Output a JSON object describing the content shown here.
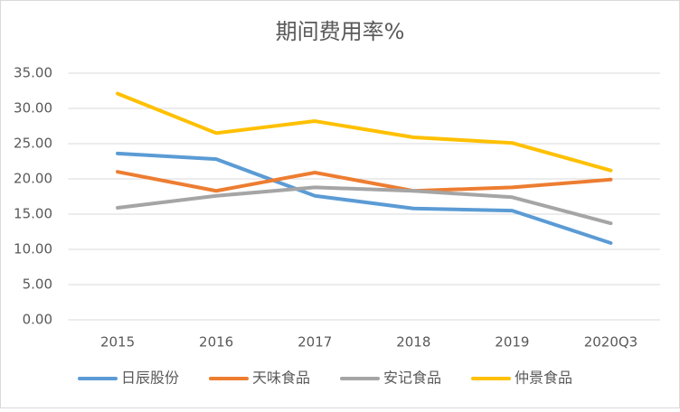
{
  "chart_data": {
    "type": "line",
    "title": "期间费用率%",
    "categories": [
      "2015",
      "2016",
      "2017",
      "2018",
      "2019",
      "2020Q3"
    ],
    "series": [
      {
        "name": "日辰股份",
        "color": "#5b9bd5",
        "values": [
          23.6,
          22.8,
          17.6,
          15.8,
          15.5,
          10.9
        ]
      },
      {
        "name": "天味食品",
        "color": "#ed7d31",
        "values": [
          21.0,
          18.3,
          20.9,
          18.3,
          18.8,
          19.9
        ]
      },
      {
        "name": "安记食品",
        "color": "#a5a5a5",
        "values": [
          15.9,
          17.6,
          18.8,
          18.3,
          17.4,
          13.7
        ]
      },
      {
        "name": "仲景食品",
        "color": "#ffc000",
        "values": [
          32.1,
          26.5,
          28.2,
          25.9,
          25.1,
          21.2
        ]
      }
    ],
    "ylim": [
      0,
      35
    ],
    "yticks": [
      {
        "value": 0,
        "label": "0.00"
      },
      {
        "value": 5,
        "label": "5.00"
      },
      {
        "value": 10,
        "label": "10.00"
      },
      {
        "value": 15,
        "label": "15.00"
      },
      {
        "value": 20,
        "label": "20.00"
      },
      {
        "value": 25,
        "label": "25.00"
      },
      {
        "value": 30,
        "label": "30.00"
      },
      {
        "value": 35,
        "label": "35.00"
      }
    ],
    "grid": true,
    "legend": "bottom"
  }
}
